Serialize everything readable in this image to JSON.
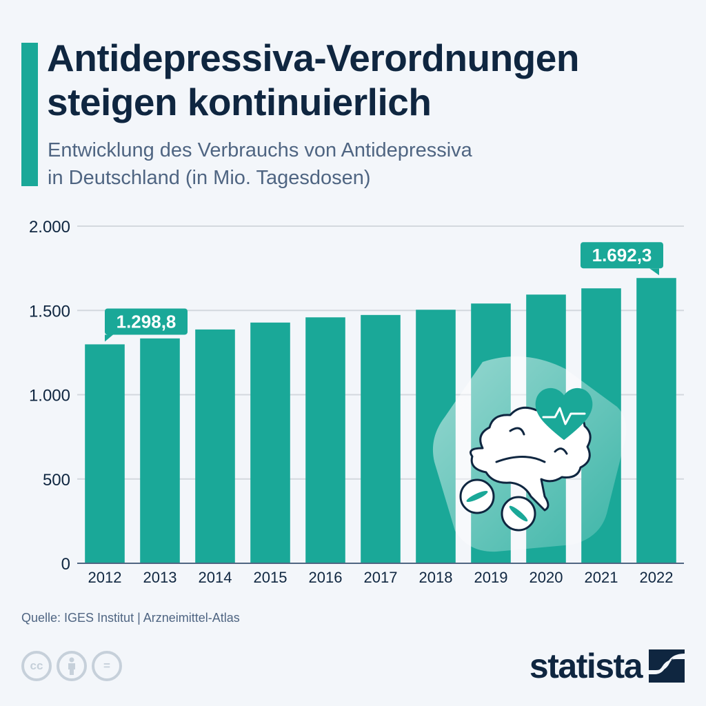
{
  "header": {
    "title_line1": "Antidepressiva-Verordnungen",
    "title_line2": "steigen kontinuierlich",
    "subtitle_line1": "Entwicklung des Verbrauchs von Antidepressiva",
    "subtitle_line2": "in Deutschland (in Mio. Tagesdosen)"
  },
  "colors": {
    "accent": "#1aa898",
    "title": "#0f2640",
    "subtitle": "#4f6582",
    "background": "#f3f6fa",
    "grid": "#d3d8de",
    "icon_muted": "#c6d0da"
  },
  "chart_data": {
    "type": "bar",
    "title": "Antidepressiva-Verordnungen steigen kontinuierlich",
    "subtitle": "Entwicklung des Verbrauchs von Antidepressiva in Deutschland (in Mio. Tagesdosen)",
    "xlabel": "",
    "ylabel": "Mio. Tagesdosen",
    "categories": [
      "2012",
      "2013",
      "2014",
      "2015",
      "2016",
      "2017",
      "2018",
      "2019",
      "2020",
      "2021",
      "2022"
    ],
    "values": [
      1298.8,
      1334,
      1387,
      1428,
      1459,
      1473,
      1504,
      1541,
      1594,
      1631,
      1692.3
    ],
    "ylim": [
      0,
      2000
    ],
    "yticks": [
      0,
      500,
      1000,
      1500,
      2000
    ],
    "ytick_labels": [
      "0",
      "500",
      "1.000",
      "1.500",
      "2.000"
    ],
    "grid": true,
    "legend": "none",
    "annotations": [
      {
        "category": "2012",
        "label": "1.298,8"
      },
      {
        "category": "2022",
        "label": "1.692,3"
      }
    ],
    "illustration": "brain-heart-pills-icon"
  },
  "footer": {
    "source": "Quelle: IGES Institut | Arzneimittel-Atlas",
    "license_icons": [
      {
        "name": "cc-icon",
        "glyph": "cc"
      },
      {
        "name": "attribution-icon",
        "glyph": "i"
      },
      {
        "name": "no-derivatives-icon",
        "glyph": "="
      }
    ],
    "brand": "statista"
  }
}
